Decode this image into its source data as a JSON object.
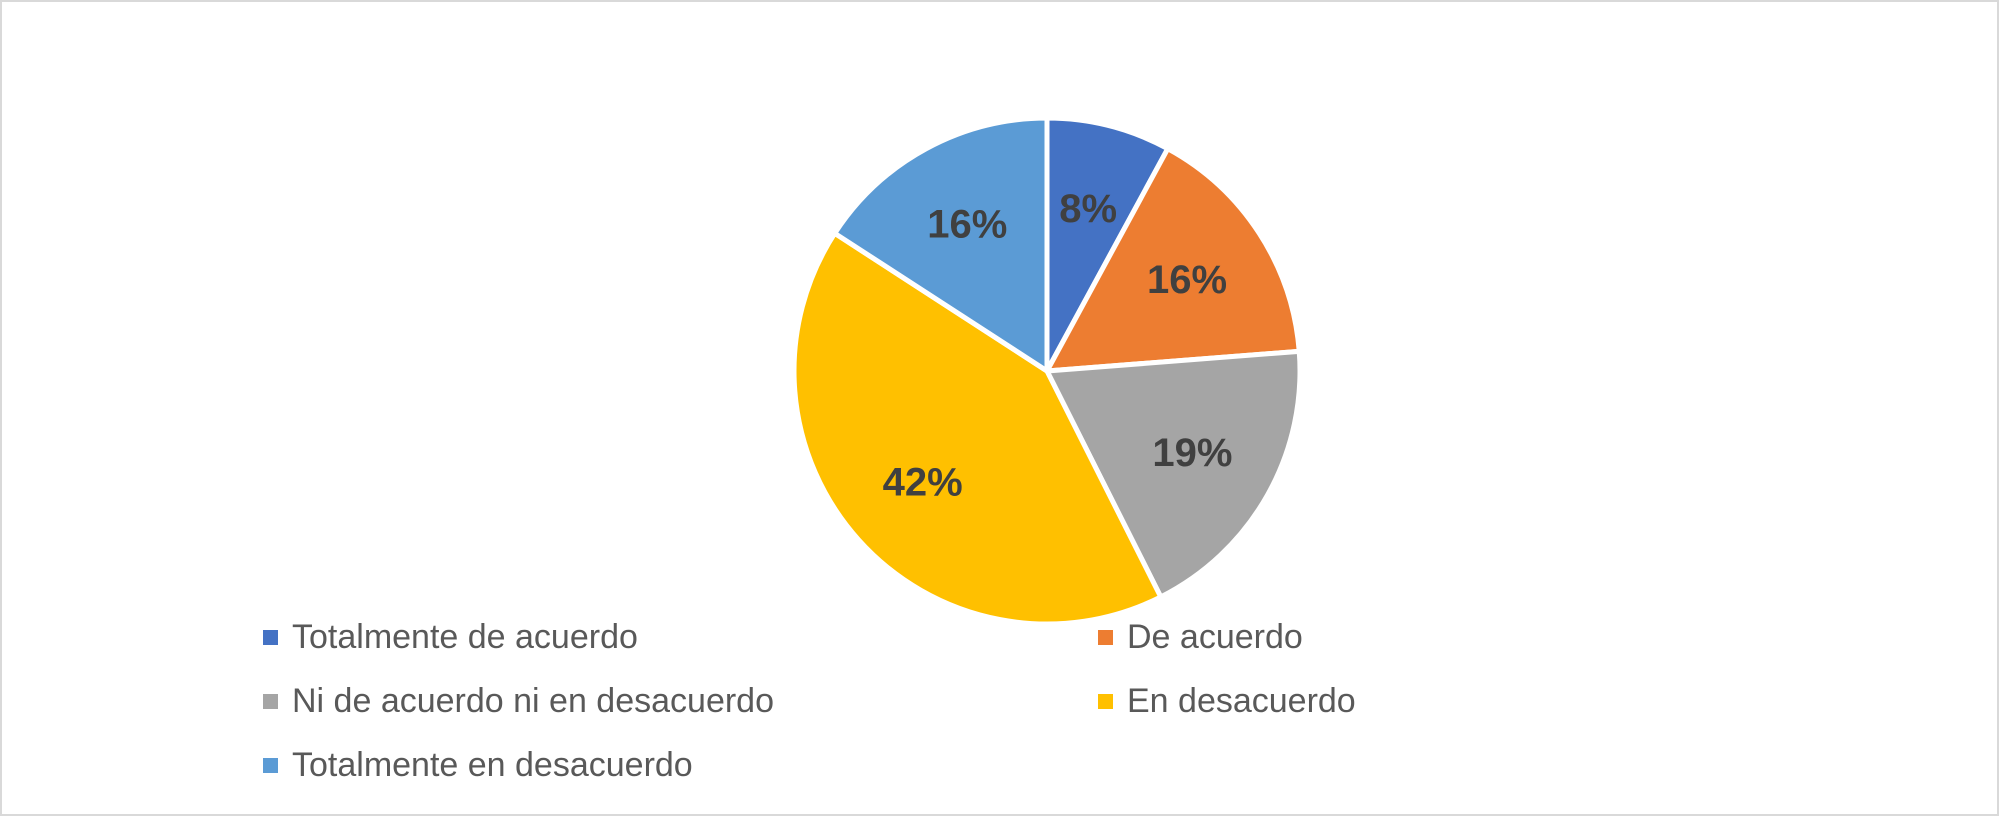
{
  "chart_data": {
    "type": "pie",
    "categories": [
      "Totalmente de acuerdo",
      "De acuerdo",
      "Ni de acuerdo ni en desacuerdo",
      "En desacuerdo",
      "Totalmente en desacuerdo"
    ],
    "values": [
      8,
      16,
      19,
      42,
      16
    ],
    "data_labels": [
      "8%",
      "16%",
      "19%",
      "42%",
      "16%"
    ],
    "colors": [
      "#4472C4",
      "#ED7D31",
      "#A5A5A5",
      "#FFC000",
      "#5B9BD5"
    ],
    "legend_position": "bottom",
    "start_angle": "12 o'clock",
    "direction": "clockwise"
  }
}
